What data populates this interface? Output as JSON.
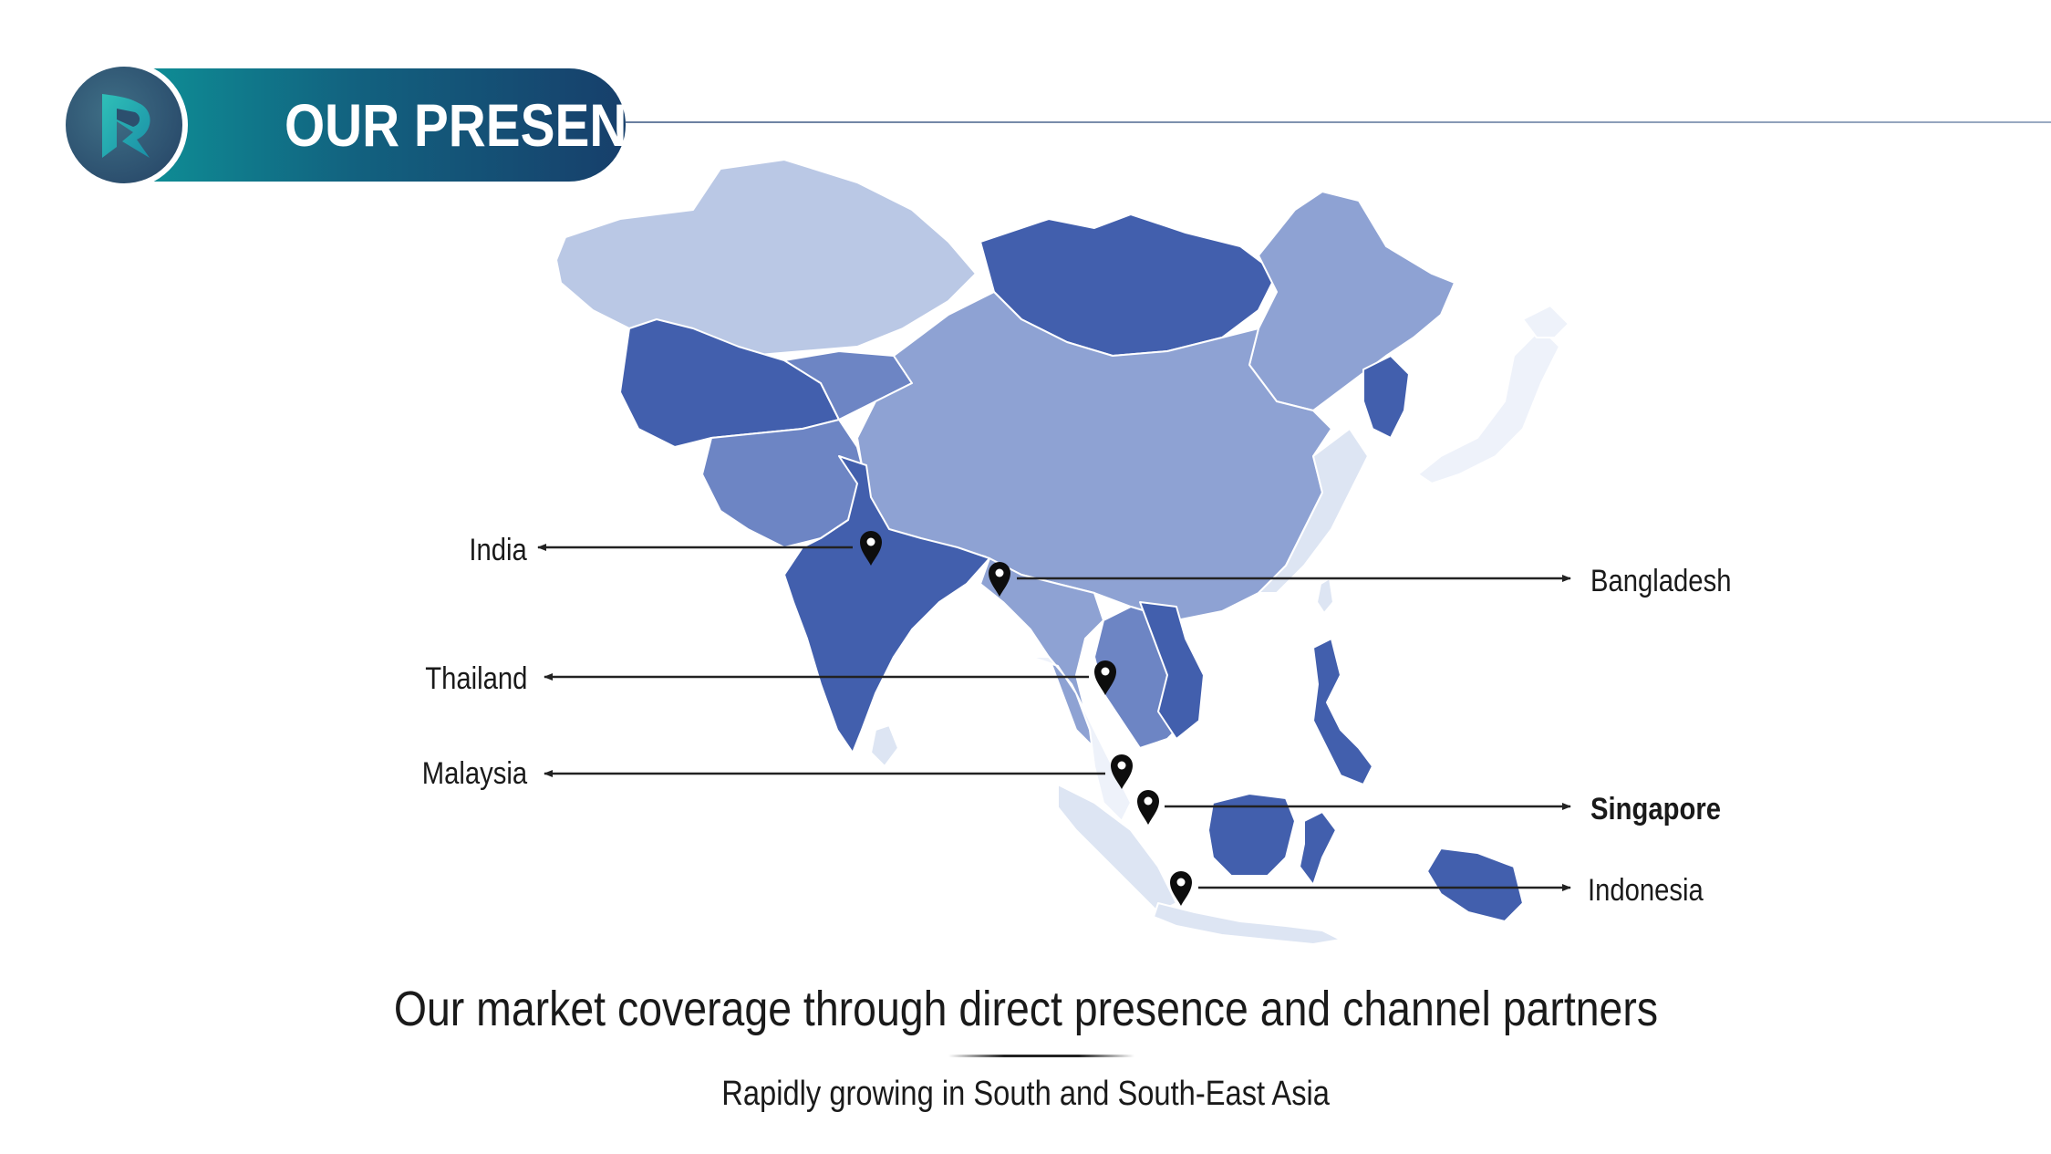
{
  "header": {
    "title": "OUR PRESENCE",
    "logo_icon": "brand-logo-icon"
  },
  "map": {
    "region": "Asia",
    "colors": {
      "light": "#bac8e5",
      "mid": "#8ea2d3",
      "midDark": "#6d85c4",
      "dark": "#425fad",
      "pale": "#dde5f3",
      "palest": "#eef2fa",
      "marker": "#0d0d0d",
      "arrow": "#222222"
    },
    "markers": [
      {
        "id": "india",
        "label": "India",
        "side": "left",
        "bold": false
      },
      {
        "id": "bangladesh",
        "label": "Bangladesh",
        "side": "right",
        "bold": false
      },
      {
        "id": "thailand",
        "label": "Thailand",
        "side": "left",
        "bold": false
      },
      {
        "id": "malaysia",
        "label": "Malaysia",
        "side": "left",
        "bold": false
      },
      {
        "id": "singapore",
        "label": "Singapore",
        "side": "right",
        "bold": true
      },
      {
        "id": "indonesia",
        "label": "Indonesia",
        "side": "right",
        "bold": false
      }
    ]
  },
  "footer": {
    "headline": "Our market coverage through direct presence and channel partners",
    "subline": "Rapidly growing in South and South-East Asia"
  }
}
